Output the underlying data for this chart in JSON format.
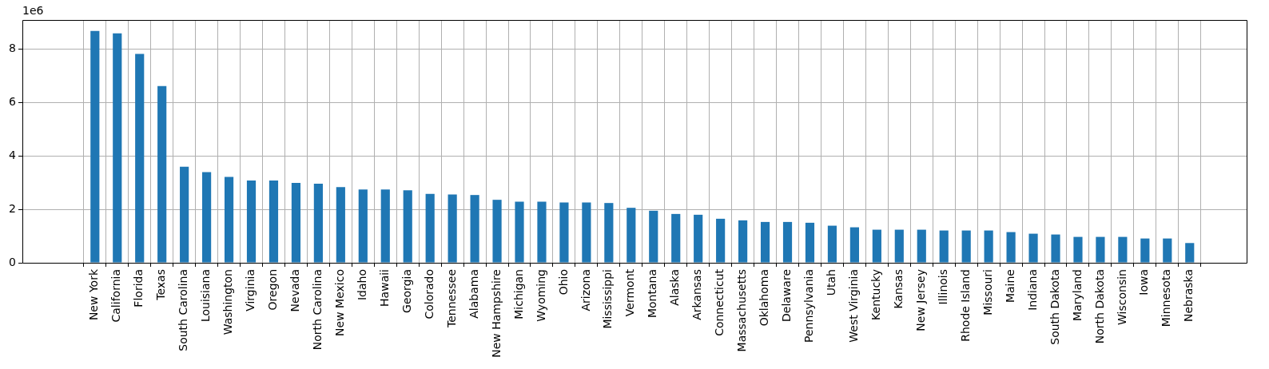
{
  "chart_data": {
    "type": "bar",
    "categories": [
      "New York",
      "California",
      "Florida",
      "Texas",
      "South Carolina",
      "Louisiana",
      "Washington",
      "Virginia",
      "Oregon",
      "Nevada",
      "North Carolina",
      "New Mexico",
      "Idaho",
      "Hawaii",
      "Georgia",
      "Colorado",
      "Tennessee",
      "Alabama",
      "New Hampshire",
      "Michigan",
      "Wyoming",
      "Ohio",
      "Arizona",
      "Mississippi",
      "Vermont",
      "Montana",
      "Alaska",
      "Arkansas",
      "Connecticut",
      "Massachusetts",
      "Oklahoma",
      "Delaware",
      "Pennsylvania",
      "Utah",
      "West Virginia",
      "Kentucky",
      "Kansas",
      "New Jersey",
      "Illinois",
      "Rhode Island",
      "Missouri",
      "Maine",
      "Indiana",
      "South Dakota",
      "Maryland",
      "North Dakota",
      "Wisconsin",
      "Iowa",
      "Minnesota",
      "Nebraska"
    ],
    "values": [
      8.69,
      8.6,
      7.83,
      6.62,
      3.6,
      3.4,
      3.22,
      3.08,
      3.08,
      2.99,
      2.96,
      2.84,
      2.75,
      2.75,
      2.72,
      2.58,
      2.56,
      2.54,
      2.36,
      2.29,
      2.29,
      2.26,
      2.26,
      2.24,
      2.06,
      1.95,
      1.83,
      1.8,
      1.65,
      1.59,
      1.53,
      1.53,
      1.5,
      1.39,
      1.33,
      1.24,
      1.24,
      1.24,
      1.21,
      1.21,
      1.21,
      1.15,
      1.09,
      1.06,
      0.97,
      0.97,
      0.97,
      0.91,
      0.91,
      0.74
    ],
    "color": "#1f77b4",
    "ylim": [
      0,
      9.1
    ],
    "yticks": [
      0,
      2,
      4,
      6,
      8
    ],
    "grid": true,
    "annotations": [
      "1e6"
    ]
  }
}
